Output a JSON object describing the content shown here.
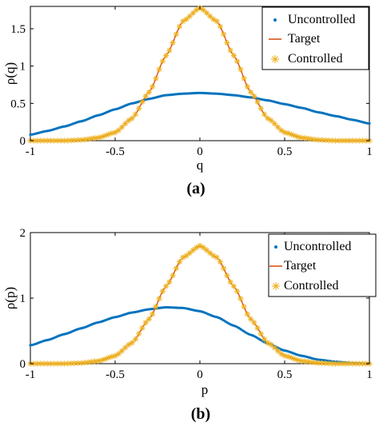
{
  "chart_data": [
    {
      "type": "scatter",
      "panel_label": "(a)",
      "xlabel": "q",
      "ylabel": "ρ(q)",
      "xlim": [
        -1,
        1
      ],
      "ylim": [
        0,
        1.8
      ],
      "xticks": [
        -1,
        -0.5,
        0,
        0.5,
        1
      ],
      "xtick_labels": [
        "-1",
        "-0.5",
        "0",
        "0.5",
        "1"
      ],
      "yticks": [
        0,
        0.5,
        1,
        1.5
      ],
      "ytick_labels": [
        "0",
        "0.5",
        "1",
        "1.5"
      ],
      "grid": false,
      "legend_position": "top-right",
      "series": [
        {
          "name": "Uncontrolled",
          "marker": "dot",
          "color": "#0072BD",
          "x": [
            -1,
            -0.9,
            -0.8,
            -0.7,
            -0.6,
            -0.5,
            -0.4,
            -0.3,
            -0.2,
            -0.1,
            0,
            0.1,
            0.2,
            0.3,
            0.4,
            0.5,
            0.6,
            0.7,
            0.8,
            0.9,
            1
          ],
          "y": [
            0.08,
            0.13,
            0.19,
            0.26,
            0.34,
            0.42,
            0.5,
            0.56,
            0.61,
            0.63,
            0.64,
            0.63,
            0.61,
            0.58,
            0.54,
            0.49,
            0.44,
            0.38,
            0.33,
            0.28,
            0.23
          ]
        },
        {
          "name": "Target",
          "marker": "line",
          "color": "#D95319",
          "x": [
            -1,
            -0.9,
            -0.8,
            -0.7,
            -0.6,
            -0.5,
            -0.4,
            -0.3,
            -0.2,
            -0.1,
            0,
            0.1,
            0.2,
            0.3,
            0.4,
            0.5,
            0.6,
            0.7,
            0.8,
            0.9,
            1
          ],
          "y": [
            0.0,
            0.0,
            0.0,
            0.01,
            0.04,
            0.11,
            0.3,
            0.65,
            1.14,
            1.6,
            1.78,
            1.6,
            1.14,
            0.65,
            0.3,
            0.11,
            0.04,
            0.01,
            0.0,
            0.0,
            0.0
          ]
        },
        {
          "name": "Controlled",
          "marker": "asterisk",
          "color": "#EDB120",
          "x": [
            -1,
            -0.9,
            -0.8,
            -0.7,
            -0.6,
            -0.5,
            -0.4,
            -0.3,
            -0.2,
            -0.1,
            0,
            0.1,
            0.2,
            0.3,
            0.4,
            0.5,
            0.6,
            0.7,
            0.8,
            0.9,
            1
          ],
          "y": [
            0.0,
            0.0,
            0.0,
            0.01,
            0.04,
            0.11,
            0.3,
            0.65,
            1.14,
            1.6,
            1.78,
            1.6,
            1.14,
            0.65,
            0.3,
            0.11,
            0.04,
            0.01,
            0.0,
            0.0,
            0.0
          ]
        }
      ]
    },
    {
      "type": "scatter",
      "panel_label": "(b)",
      "xlabel": "p",
      "ylabel": "ρ(p)",
      "xlim": [
        -1,
        1
      ],
      "ylim": [
        0,
        2
      ],
      "xticks": [
        -1,
        -0.5,
        0,
        0.5,
        1
      ],
      "xtick_labels": [
        "-1",
        "-0.5",
        "0",
        "0.5",
        "1"
      ],
      "yticks": [
        0,
        1,
        2
      ],
      "ytick_labels": [
        "0",
        "1",
        "2"
      ],
      "grid": false,
      "legend_position": "top-right",
      "series": [
        {
          "name": "Uncontrolled",
          "marker": "dot",
          "color": "#0072BD",
          "x": [
            -1,
            -0.9,
            -0.8,
            -0.7,
            -0.6,
            -0.5,
            -0.4,
            -0.3,
            -0.2,
            -0.1,
            0,
            0.1,
            0.2,
            0.3,
            0.4,
            0.5,
            0.6,
            0.7,
            0.8,
            0.9,
            1
          ],
          "y": [
            0.28,
            0.36,
            0.45,
            0.54,
            0.63,
            0.71,
            0.78,
            0.83,
            0.86,
            0.85,
            0.8,
            0.71,
            0.58,
            0.44,
            0.31,
            0.2,
            0.12,
            0.06,
            0.03,
            0.01,
            0.0
          ]
        },
        {
          "name": "Target",
          "marker": "line",
          "color": "#D95319",
          "x": [
            -1,
            -0.9,
            -0.8,
            -0.7,
            -0.6,
            -0.5,
            -0.4,
            -0.3,
            -0.2,
            -0.1,
            0,
            0.1,
            0.2,
            0.3,
            0.4,
            0.5,
            0.6,
            0.7,
            0.8,
            0.9,
            1
          ],
          "y": [
            0.0,
            0.0,
            0.0,
            0.01,
            0.04,
            0.12,
            0.32,
            0.68,
            1.18,
            1.62,
            1.8,
            1.62,
            1.18,
            0.68,
            0.32,
            0.12,
            0.04,
            0.01,
            0.0,
            0.0,
            0.0
          ]
        },
        {
          "name": "Controlled",
          "marker": "asterisk",
          "color": "#EDB120",
          "x": [
            -1,
            -0.9,
            -0.8,
            -0.7,
            -0.6,
            -0.5,
            -0.4,
            -0.3,
            -0.2,
            -0.1,
            0,
            0.1,
            0.2,
            0.3,
            0.4,
            0.5,
            0.6,
            0.7,
            0.8,
            0.9,
            1
          ],
          "y": [
            0.0,
            0.0,
            0.0,
            0.01,
            0.04,
            0.12,
            0.32,
            0.68,
            1.18,
            1.62,
            1.8,
            1.62,
            1.18,
            0.68,
            0.32,
            0.12,
            0.04,
            0.01,
            0.0,
            0.0,
            0.0
          ]
        }
      ]
    }
  ]
}
